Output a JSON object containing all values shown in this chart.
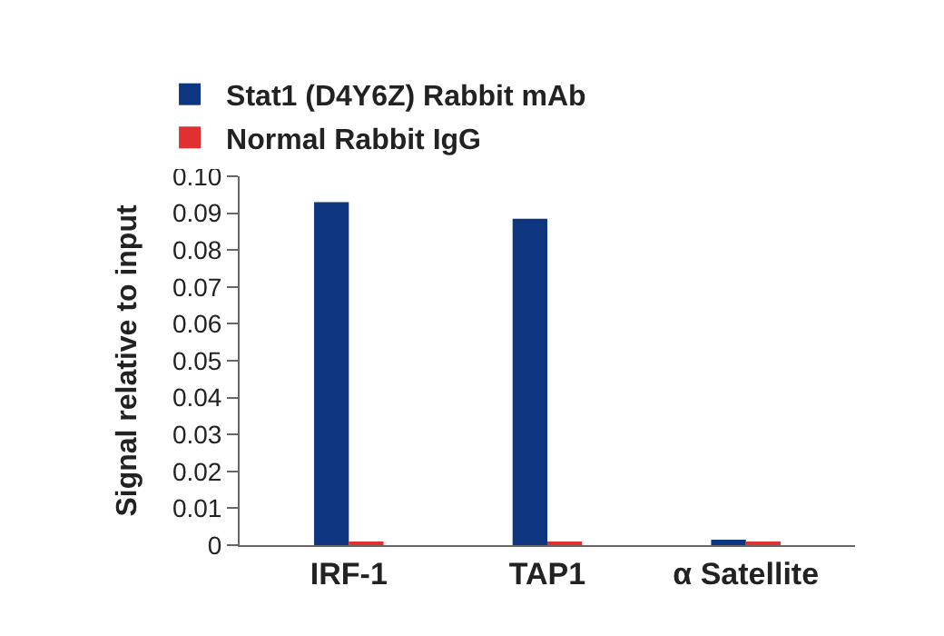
{
  "chart_data": {
    "type": "bar",
    "categories": [
      "IRF-1",
      "TAP1",
      "α Satellite"
    ],
    "series": [
      {
        "name": "Stat1 (D4Y6Z) Rabbit mAb",
        "color": "#0d3580",
        "values": [
          0.093,
          0.0885,
          0.0015
        ]
      },
      {
        "name": "Normal Rabbit IgG",
        "color": "#e03030",
        "values": [
          0.0005,
          0.001,
          0.0005
        ]
      }
    ],
    "ylabel": "Signal relative to input",
    "ylim": [
      0,
      0.1
    ],
    "yticks": [
      {
        "value": 0,
        "label": "0"
      },
      {
        "value": 0.01,
        "label": "0.01"
      },
      {
        "value": 0.02,
        "label": "0.02"
      },
      {
        "value": 0.03,
        "label": "0.03"
      },
      {
        "value": 0.04,
        "label": "0.04"
      },
      {
        "value": 0.05,
        "label": "0.05"
      },
      {
        "value": 0.06,
        "label": "0.06"
      },
      {
        "value": 0.07,
        "label": "0.07"
      },
      {
        "value": 0.08,
        "label": "0.08"
      },
      {
        "value": 0.09,
        "label": "0.09"
      },
      {
        "value": 0.1,
        "label": "0.10"
      }
    ],
    "legend": "top left"
  }
}
